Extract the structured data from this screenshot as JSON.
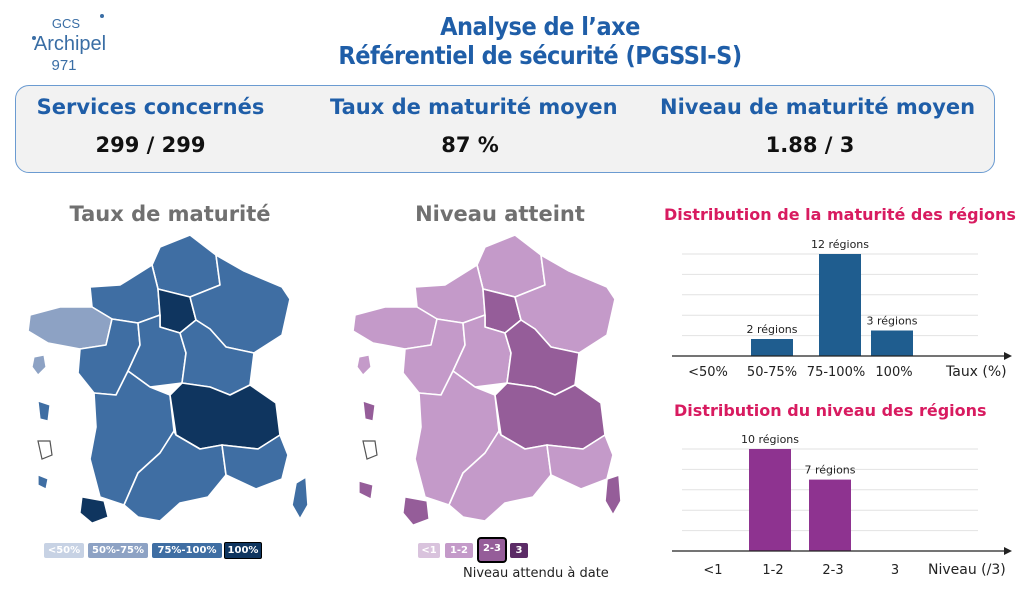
{
  "logo": {
    "line1": "GCS",
    "line2": "Archipel",
    "line3": "971"
  },
  "title": {
    "line1": "Analyse de l’axe",
    "line2": "Référentiel de sécurité (PGSSI-S)"
  },
  "kpis": [
    {
      "label": "Services concernés",
      "value": "299 / 299"
    },
    {
      "label": "Taux de maturité moyen",
      "value": "87 %"
    },
    {
      "label": "Niveau de maturité moyen",
      "value": "1.88 / 3"
    }
  ],
  "map_left": {
    "title": "Taux de maturité",
    "legend": [
      "<50%",
      "50%-75%",
      "75%-100%",
      "100%"
    ],
    "colors": [
      "#c7d2e4",
      "#8da2c4",
      "#3f6ea3",
      "#0f355f"
    ]
  },
  "map_right": {
    "title": "Niveau atteint",
    "legend": [
      "<1",
      "1-2",
      "2-3",
      "3"
    ],
    "colors": [
      "#d9c3dd",
      "#c49ac9",
      "#955d99",
      "#5b2b66"
    ],
    "note": "Niveau attendu à date"
  },
  "chart_data": [
    {
      "type": "bar",
      "title": "Distribution de la maturité des régions",
      "categories": [
        "<50%",
        "50-75%",
        "75-100%",
        "100%"
      ],
      "values": [
        0,
        2,
        12,
        3
      ],
      "data_labels": [
        "",
        "2 régions",
        "12 régions",
        "3 régions"
      ],
      "xlabel": "Taux (%)",
      "ylim": [
        0,
        12
      ],
      "grid": true,
      "color": "#1f5d8f"
    },
    {
      "type": "bar",
      "title": "Distribution du niveau des régions",
      "categories": [
        "<1",
        "1-2",
        "2-3",
        "3"
      ],
      "values": [
        0,
        10,
        7,
        0
      ],
      "data_labels": [
        "",
        "10 régions",
        "7 régions",
        ""
      ],
      "xlabel": "Niveau (/3)",
      "ylim": [
        0,
        10
      ],
      "grid": true,
      "color": "#8e3390"
    }
  ]
}
